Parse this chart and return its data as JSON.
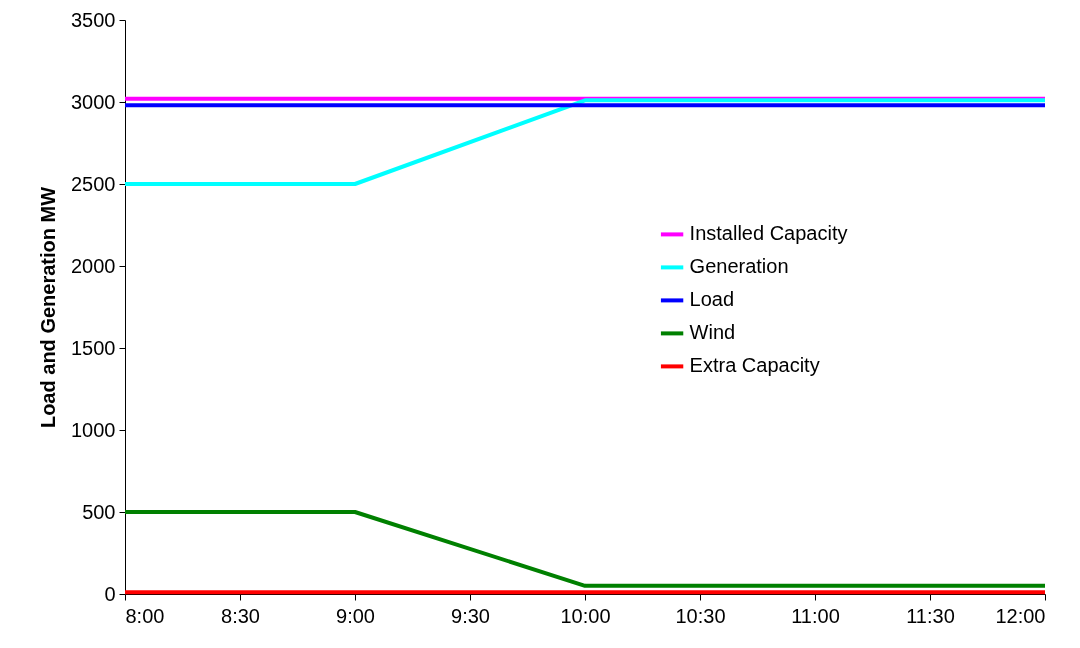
{
  "chart_data": {
    "type": "line",
    "ylabel": "Load and Generation MW",
    "x": [
      8,
      9,
      10,
      12
    ],
    "xlim": [
      8,
      12
    ],
    "xticks": [
      {
        "value": 8,
        "label": "8:00"
      },
      {
        "value": 8.5,
        "label": "8:30"
      },
      {
        "value": 9,
        "label": "9:00"
      },
      {
        "value": 9.5,
        "label": "9:30"
      },
      {
        "value": 10,
        "label": "10:00"
      },
      {
        "value": 10.5,
        "label": "10:30"
      },
      {
        "value": 11,
        "label": "11:00"
      },
      {
        "value": 11.5,
        "label": "11:30"
      },
      {
        "value": 12,
        "label": "12:00"
      }
    ],
    "ylim": [
      0,
      3500
    ],
    "yticks": [
      0,
      500,
      1000,
      1500,
      2000,
      2500,
      3000,
      3500
    ],
    "series": [
      {
        "name": "Installed Capacity",
        "color": "#ff00ff",
        "values": [
          3020,
          3020,
          3020,
          3020
        ]
      },
      {
        "name": "Generation",
        "color": "#00ffff",
        "values": [
          2500,
          2500,
          3010,
          3010
        ]
      },
      {
        "name": "Load",
        "color": "#0000ff",
        "values": [
          2980,
          2980,
          2980,
          2980
        ]
      },
      {
        "name": "Wind",
        "color": "#008000",
        "values": [
          500,
          500,
          50,
          50
        ]
      },
      {
        "name": "Extra Capacity",
        "color": "#ff0000",
        "values": [
          10,
          10,
          10,
          10
        ]
      }
    ],
    "grid": false,
    "legend": "right",
    "marker": "none",
    "line_style": "solid"
  }
}
